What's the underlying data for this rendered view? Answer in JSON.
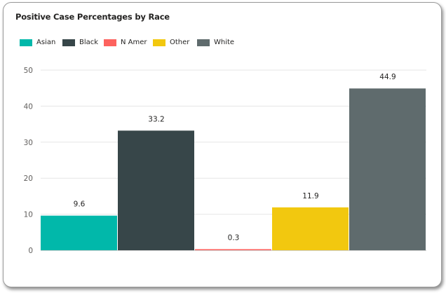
{
  "chart_data": {
    "type": "bar",
    "title": "Positive Case Percentages by Race",
    "xlabel": "",
    "ylabel": "",
    "categories": [
      "Asian",
      "Black",
      "N Amer",
      "Other",
      "White"
    ],
    "values": [
      9.6,
      33.2,
      0.3,
      11.9,
      44.9
    ],
    "value_labels": [
      "9.6",
      "33.2",
      "0.3",
      "11.9",
      "44.9"
    ],
    "colors": [
      "#01B8AA",
      "#374649",
      "#FD625E",
      "#F2C80F",
      "#5F6B6D"
    ],
    "ylim": [
      0,
      50
    ],
    "yticks": [
      "0",
      "10",
      "20",
      "30",
      "40",
      "50"
    ],
    "grid": true,
    "legend": "top-left"
  }
}
